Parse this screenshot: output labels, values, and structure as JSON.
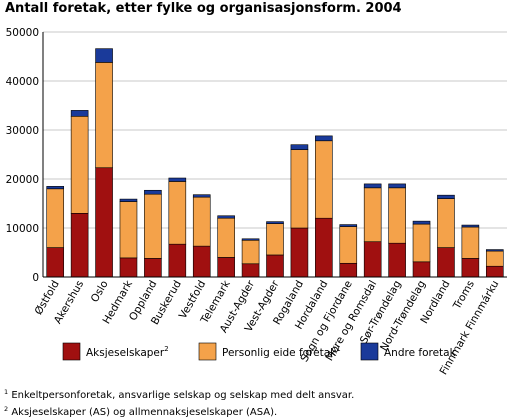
{
  "chart_data": {
    "type": "bar",
    "stacked": true,
    "title": "Antall foretak, etter fylke og organisasjonsform. 2004",
    "categories": [
      "Østfold",
      "Akershus",
      "Oslo",
      "Hedmark",
      "Oppland",
      "Buskerud",
      "Vestfold",
      "Telemark",
      "Aust-Agder",
      "Vest-Agder",
      "Rogaland",
      "Hordaland",
      "Sogn og Fjordane",
      "Møre og Romsdal",
      "Sør-Trøndelag",
      "Nord-Trøndelag",
      "Nordland",
      "Troms",
      "Finnmark Finnmárku"
    ],
    "series": [
      {
        "name": "Aksjeselskaper",
        "sup": "2",
        "color": "#a01010",
        "values": [
          6000,
          13000,
          22300,
          3900,
          3800,
          6700,
          6300,
          4000,
          2700,
          4500,
          10000,
          12000,
          2800,
          7200,
          6900,
          3100,
          6000,
          3800,
          2200
        ]
      },
      {
        "name": "Personlig eide foretak",
        "sup": "1",
        "color": "#f4a24a",
        "values": [
          12000,
          19800,
          21500,
          11500,
          13100,
          12800,
          10000,
          8000,
          4800,
          6400,
          16000,
          15800,
          7500,
          11000,
          11300,
          7700,
          10000,
          6400,
          3100
        ]
      },
      {
        "name": "Andre foretak",
        "sup": "",
        "color": "#1a3a9a",
        "values": [
          500,
          1200,
          2800,
          500,
          800,
          700,
          500,
          500,
          300,
          400,
          1000,
          1000,
          400,
          800,
          800,
          600,
          700,
          400,
          300
        ]
      }
    ],
    "yticks": [
      0,
      10000,
      20000,
      30000,
      40000,
      50000
    ],
    "ylim": [
      0,
      50000
    ],
    "grid": true
  },
  "footnotes": [
    {
      "sup": "1",
      "text": "Enkeltpersonforetak, ansvarlige selskap og selskap med delt ansvar."
    },
    {
      "sup": "2",
      "text": "Aksjeselskaper (AS) og allmennaksjeselskaper (ASA)."
    }
  ]
}
